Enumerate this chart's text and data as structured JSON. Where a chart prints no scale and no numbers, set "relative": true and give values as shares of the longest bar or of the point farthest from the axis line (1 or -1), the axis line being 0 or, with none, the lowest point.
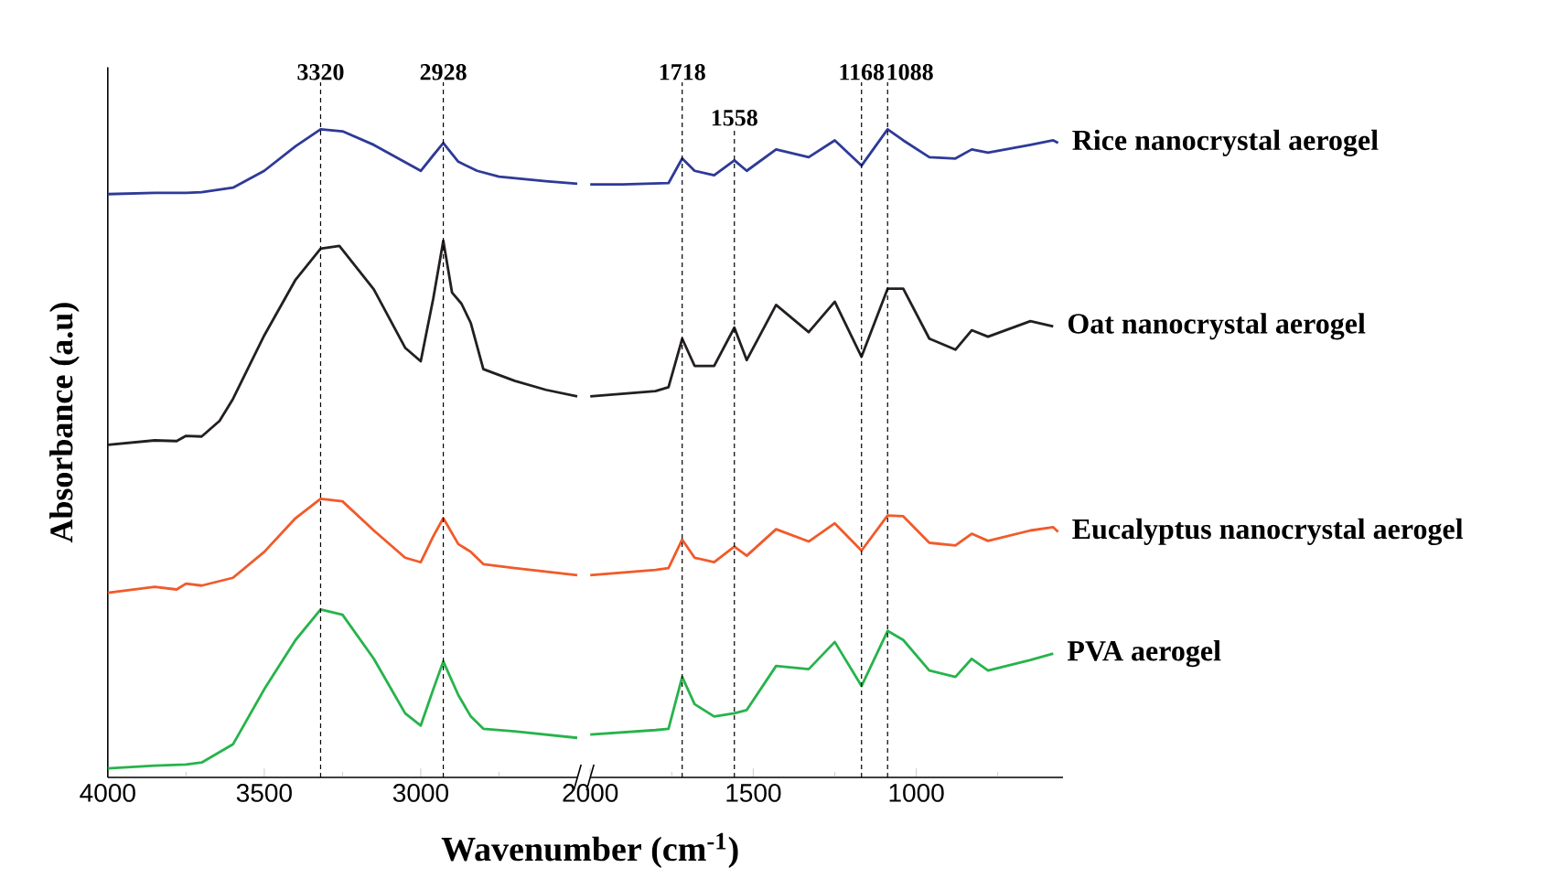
{
  "chart_data": [
    {
      "type": "line",
      "relative": true,
      "tick_labels": "x",
      "ylabel": "Absorbance (a.u)",
      "xlabel": "Wavenumber (cm$^{-1}$)",
      "xlim": [
        4000,
        2500
      ],
      "xticks": [
        4000,
        3500,
        3000,
        {
          "value": 3750,
          "label": null
        },
        {
          "value": 3250,
          "label": null
        },
        {
          "value": 2750,
          "label": null
        }
      ],
      "series": [
        {
          "color": "#2e3a97",
          "x": [
            4000,
            3850,
            3750,
            3700,
            3600,
            3500,
            3400,
            3320,
            3250,
            3150,
            3000,
            2960,
            2928,
            2880,
            2820,
            2750,
            2600,
            2500
          ],
          "values": [
            0.9,
            0.902,
            0.902,
            0.903,
            0.91,
            0.936,
            0.974,
            1.0,
            0.997,
            0.976,
            0.936,
            0.96,
            0.979,
            0.95,
            0.936,
            0.927,
            0.92,
            0.916
          ]
        },
        {
          "color": "#231f20",
          "x": [
            4000,
            3850,
            3780,
            3750,
            3700,
            3643,
            3600,
            3500,
            3400,
            3320,
            3260,
            3150,
            3050,
            3000,
            2960,
            2928,
            2900,
            2870,
            2840,
            2800,
            2700,
            2600,
            2500
          ],
          "values": [
            0.513,
            0.52,
            0.519,
            0.527,
            0.526,
            0.55,
            0.584,
            0.682,
            0.768,
            0.816,
            0.82,
            0.753,
            0.663,
            0.642,
            0.739,
            0.828,
            0.748,
            0.731,
            0.701,
            0.63,
            0.612,
            0.598,
            0.588
          ]
        },
        {
          "color": "#f15a29",
          "x": [
            4000,
            3850,
            3780,
            3750,
            3700,
            3600,
            3500,
            3400,
            3320,
            3250,
            3150,
            3050,
            3000,
            2960,
            2928,
            2880,
            2840,
            2800,
            2700,
            2500
          ],
          "values": [
            0.285,
            0.294,
            0.29,
            0.299,
            0.296,
            0.308,
            0.348,
            0.4,
            0.43,
            0.426,
            0.381,
            0.339,
            0.332,
            0.372,
            0.4,
            0.36,
            0.348,
            0.329,
            0.323,
            0.312
          ]
        },
        {
          "color": "#27b34b",
          "x": [
            4000,
            3850,
            3750,
            3700,
            3600,
            3500,
            3400,
            3320,
            3250,
            3150,
            3050,
            3000,
            2960,
            2928,
            2880,
            2840,
            2800,
            2700,
            2500
          ],
          "values": [
            0.014,
            0.018,
            0.02,
            0.023,
            0.051,
            0.136,
            0.212,
            0.259,
            0.251,
            0.183,
            0.099,
            0.08,
            0.136,
            0.179,
            0.127,
            0.094,
            0.075,
            0.071,
            0.061
          ]
        }
      ],
      "ref_lines": [
        {
          "axis": "x",
          "value": 3320,
          "label": "3320",
          "color": "#000000",
          "line_style": "dashed"
        },
        {
          "axis": "x",
          "value": 2928,
          "label": "2928",
          "color": "#000000",
          "line_style": "dashed"
        }
      ]
    },
    {
      "type": "line",
      "relative": true,
      "tick_labels": "x",
      "xlim": [
        2000,
        550
      ],
      "xticks": [
        2000,
        1500,
        1000,
        {
          "value": 1750,
          "label": null
        },
        {
          "value": 1250,
          "label": null
        },
        {
          "value": 750,
          "label": null
        }
      ],
      "series": [
        {
          "name": "Rice nanocrystal aerogel",
          "color": "#2e3a97",
          "x": [
            2000,
            1900,
            1760,
            1718,
            1680,
            1620,
            1558,
            1520,
            1430,
            1330,
            1250,
            1168,
            1088,
            1040,
            960,
            880,
            830,
            780,
            650,
            580,
            565
          ],
          "values": [
            0.915,
            0.915,
            0.917,
            0.955,
            0.936,
            0.929,
            0.952,
            0.936,
            0.969,
            0.957,
            0.983,
            0.944,
            1.0,
            0.983,
            0.957,
            0.955,
            0.969,
            0.964,
            0.976,
            0.983,
            0.979
          ]
        },
        {
          "name": "Oat nanocrystal aerogel",
          "color": "#231f20",
          "x": [
            2000,
            1800,
            1760,
            1718,
            1680,
            1620,
            1558,
            1520,
            1430,
            1330,
            1250,
            1168,
            1088,
            1040,
            960,
            880,
            830,
            780,
            650,
            580
          ],
          "values": [
            0.588,
            0.596,
            0.602,
            0.677,
            0.635,
            0.635,
            0.694,
            0.644,
            0.729,
            0.687,
            0.734,
            0.649,
            0.754,
            0.754,
            0.677,
            0.66,
            0.69,
            0.68,
            0.704,
            0.696
          ]
        },
        {
          "name": "Eucalyptus nanocrystal aerogel",
          "color": "#f15a29",
          "x": [
            2000,
            1800,
            1760,
            1718,
            1680,
            1620,
            1558,
            1520,
            1430,
            1330,
            1250,
            1168,
            1088,
            1040,
            960,
            880,
            830,
            780,
            650,
            580,
            565
          ],
          "values": [
            0.312,
            0.32,
            0.323,
            0.367,
            0.339,
            0.332,
            0.356,
            0.342,
            0.383,
            0.364,
            0.392,
            0.35,
            0.404,
            0.403,
            0.362,
            0.358,
            0.376,
            0.365,
            0.381,
            0.386,
            0.379
          ]
        },
        {
          "name": "PVA aerogel",
          "color": "#27b34b",
          "x": [
            2000,
            1800,
            1760,
            1718,
            1680,
            1620,
            1558,
            1520,
            1430,
            1330,
            1250,
            1168,
            1088,
            1040,
            960,
            880,
            830,
            780,
            650,
            580
          ],
          "values": [
            0.066,
            0.073,
            0.075,
            0.155,
            0.113,
            0.094,
            0.099,
            0.104,
            0.172,
            0.167,
            0.209,
            0.141,
            0.226,
            0.212,
            0.165,
            0.155,
            0.183,
            0.165,
            0.181,
            0.191
          ]
        }
      ],
      "ref_lines": [
        {
          "axis": "x",
          "value": 1718,
          "label": "1718",
          "color": "#000000",
          "line_style": "dashed"
        },
        {
          "axis": "x",
          "value": 1558,
          "label": "1558",
          "color": "#000000",
          "line_style": "dashed"
        },
        {
          "axis": "x",
          "value": 1168,
          "label": "1168",
          "color": "#000000",
          "line_style": "dashed"
        },
        {
          "axis": "x",
          "value": 1088,
          "label": "1088",
          "color": "#000000",
          "line_style": "dashed"
        }
      ]
    }
  ]
}
